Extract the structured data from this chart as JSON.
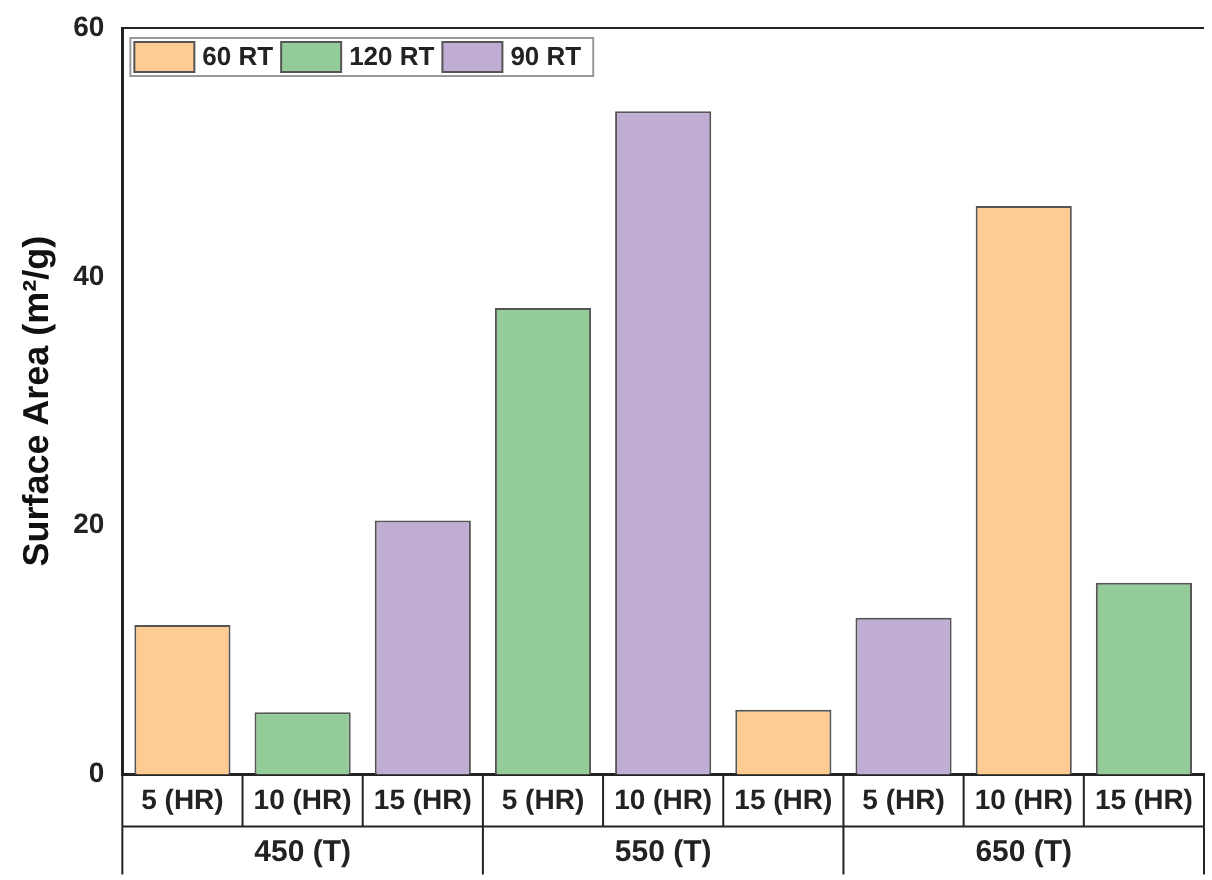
{
  "chart_data": {
    "type": "bar",
    "ylabel": "Surface Area (m²/g)",
    "categories": [
      "5 (HR)",
      "10 (HR)",
      "15 (HR)",
      "5 (HR)",
      "10 (HR)",
      "15 (HR)",
      "5 (HR)",
      "10 (HR)",
      "15 (HR)"
    ],
    "annotations": [
      "450 (T)",
      "550 (T)",
      "650 (T)"
    ],
    "series": [
      {
        "name": "60 RT",
        "color": "#fecb93",
        "values": [
          12.0,
          null,
          null,
          null,
          null,
          5.2,
          null,
          45.7,
          null
        ]
      },
      {
        "name": "120 RT",
        "color": "#93cc98",
        "values": [
          null,
          5.0,
          null,
          37.5,
          null,
          null,
          null,
          null,
          15.4
        ]
      },
      {
        "name": "90 RT",
        "color": "#c0add3",
        "values": [
          null,
          null,
          20.4,
          null,
          53.3,
          null,
          12.6,
          null,
          null
        ]
      }
    ],
    "ylim": [
      0,
      60
    ],
    "yticks": [
      0,
      20,
      40,
      60
    ],
    "grid": false,
    "legend": "top left"
  }
}
